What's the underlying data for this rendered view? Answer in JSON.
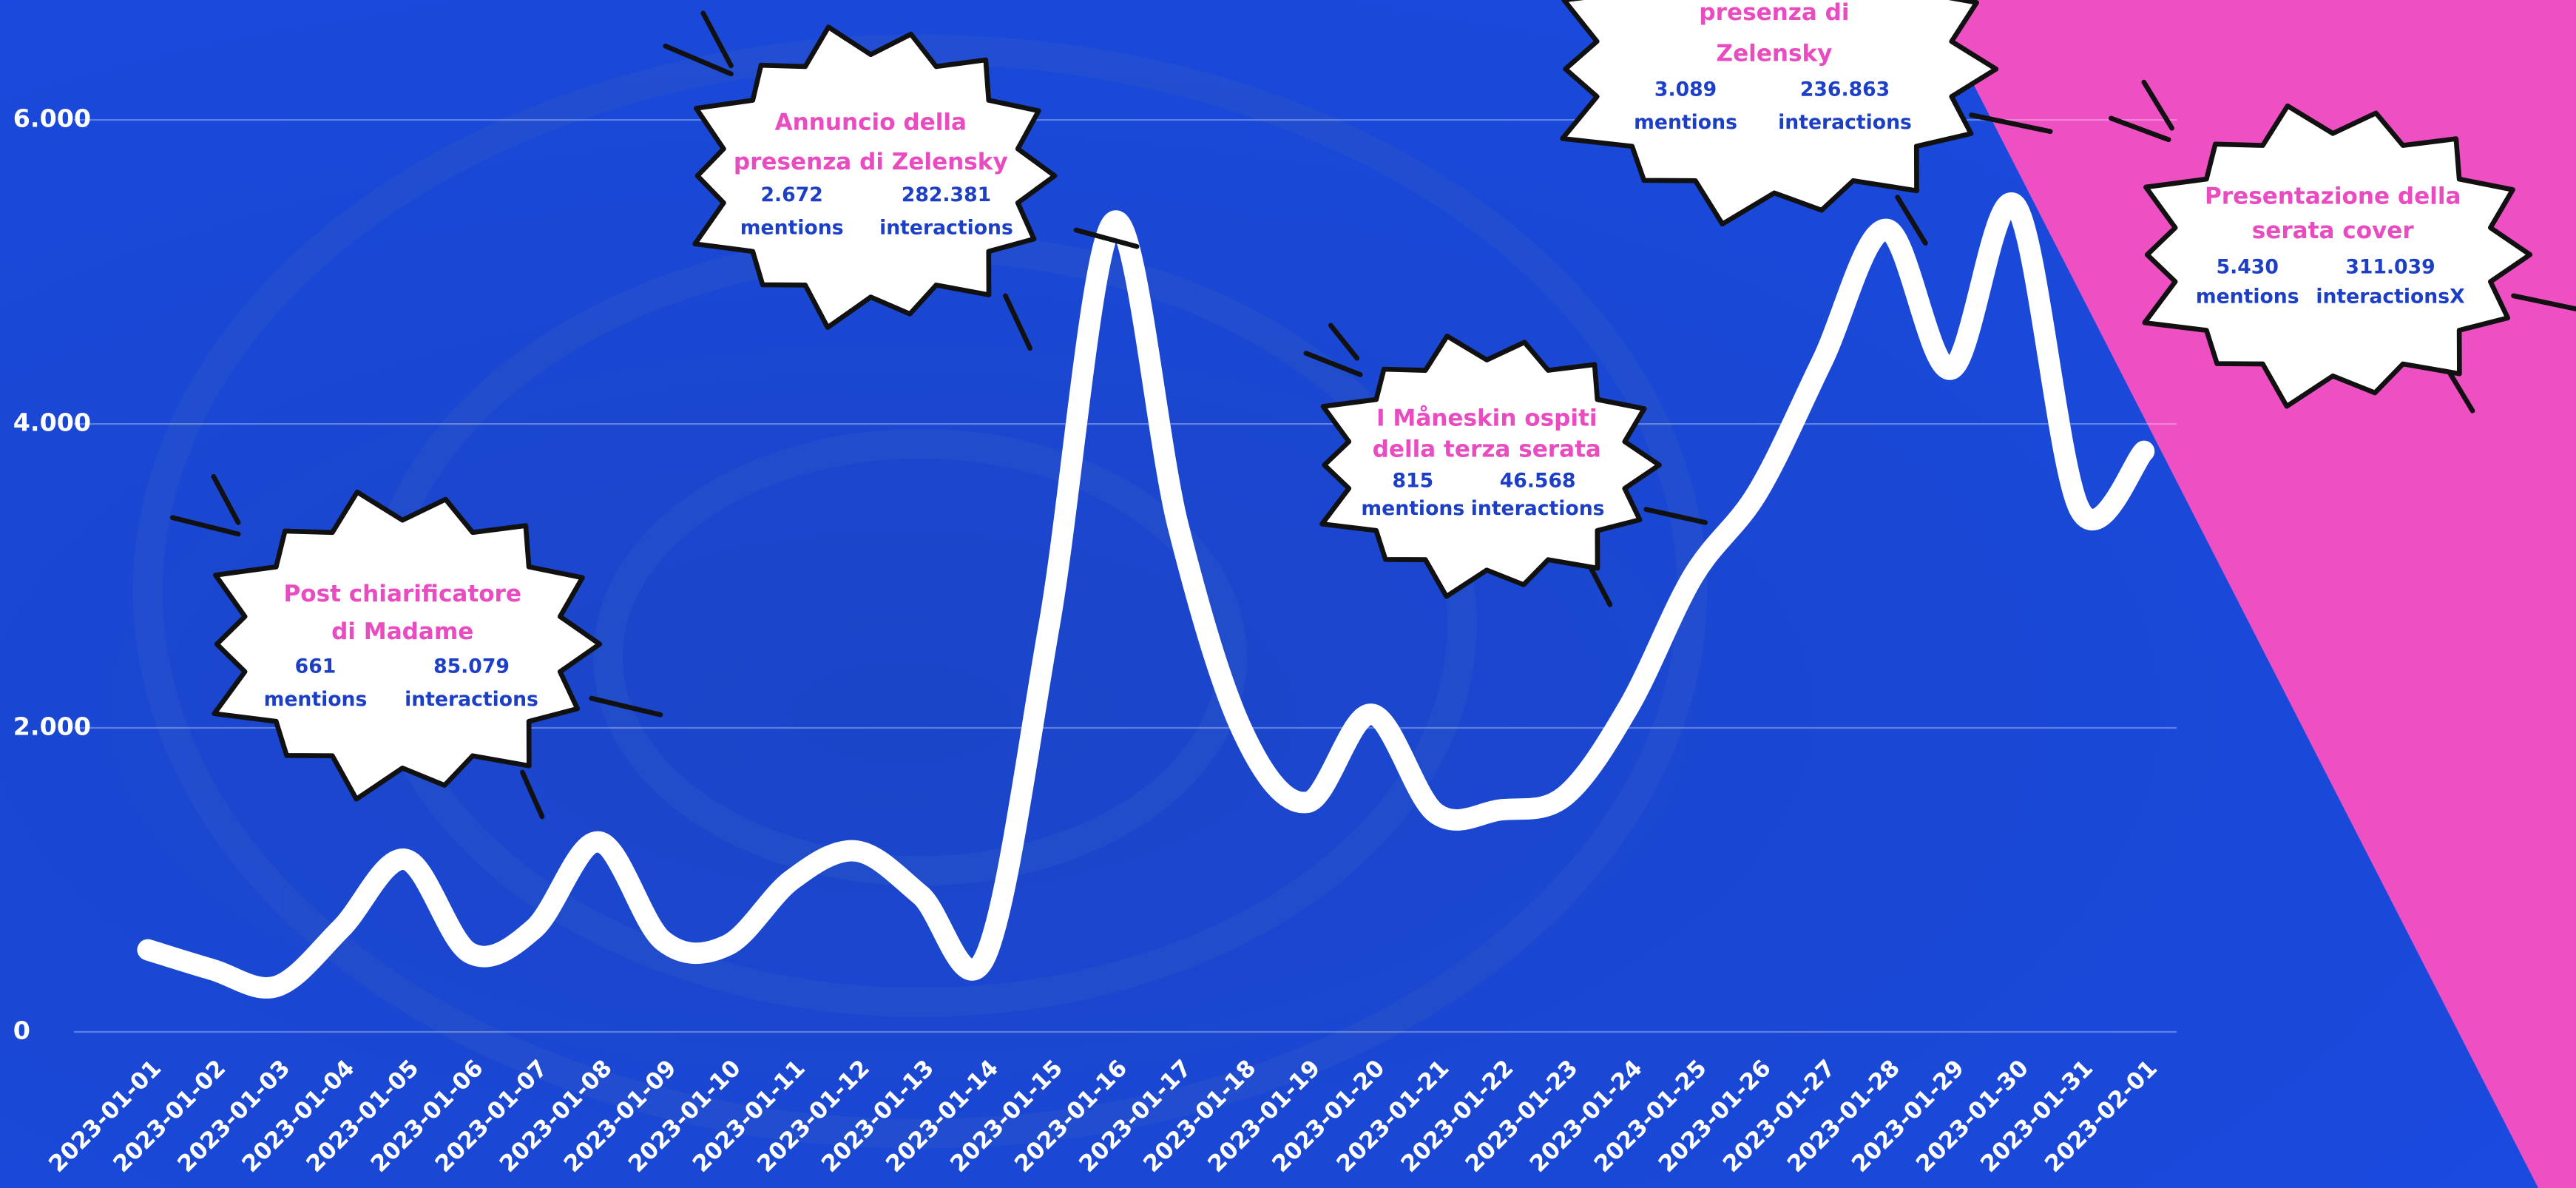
{
  "chart_data": {
    "type": "line",
    "x": [
      "2023-01-01",
      "2023-01-02",
      "2023-01-03",
      "2023-01-04",
      "2023-01-05",
      "2023-01-06",
      "2023-01-07",
      "2023-01-08",
      "2023-01-09",
      "2023-01-10",
      "2023-01-11",
      "2023-01-12",
      "2023-01-13",
      "2023-01-14",
      "2023-01-15",
      "2023-01-16",
      "2023-01-17",
      "2023-01-18",
      "2023-01-19",
      "2023-01-20",
      "2023-01-21",
      "2023-01-22",
      "2023-01-23",
      "2023-01-24",
      "2023-01-25",
      "2023-01-26",
      "2023-01-27",
      "2023-01-28",
      "2023-01-29",
      "2023-01-30",
      "2023-01-31",
      "2023-02-01"
    ],
    "values": [
      540,
      410,
      300,
      680,
      1135,
      520,
      680,
      1250,
      600,
      570,
      1000,
      1190,
      900,
      490,
      2680,
      5330,
      3330,
      1980,
      1510,
      2090,
      1440,
      1460,
      1550,
      2140,
      3000,
      3550,
      4410,
      5280,
      4360,
      5440,
      3440,
      3820
    ],
    "color": "#ffffff",
    "ylim": [
      0,
      6000
    ],
    "yticks": [
      {
        "value": 0,
        "label": "0"
      },
      {
        "value": 2000,
        "label": "2.000"
      },
      {
        "value": 4000,
        "label": "4.000"
      },
      {
        "value": 6000,
        "label": "6.000"
      }
    ],
    "grid": true,
    "annotations": [
      {
        "title_lines": [
          "Post chiarificatore",
          "di Madame"
        ],
        "mentions": "661",
        "mentions_label": "mentions",
        "interactions": "85.079",
        "interactions_label": "interactions"
      },
      {
        "title_lines": [
          "Annuncio della",
          "presenza di Zelensky"
        ],
        "mentions": "2.672",
        "mentions_label": "mentions",
        "interactions": "282.381",
        "interactions_label": "interactions"
      },
      {
        "title_lines": [
          "presenza di",
          "Zelensky"
        ],
        "mentions": "3.089",
        "mentions_label": "mentions",
        "interactions": "236.863",
        "interactions_label": "interactions"
      },
      {
        "title_lines": [
          "I Måneskin ospiti",
          "della terza serata"
        ],
        "mentions": "815",
        "mentions_label": "mentions",
        "interactions": "46.568",
        "interactions_label": "interactions"
      },
      {
        "title_lines": [
          "Presentazione della",
          "serata cover"
        ],
        "mentions": "5.430",
        "mentions_label": "mentions",
        "interactions": "311.039",
        "interactions_label": "interactionsX"
      }
    ]
  }
}
